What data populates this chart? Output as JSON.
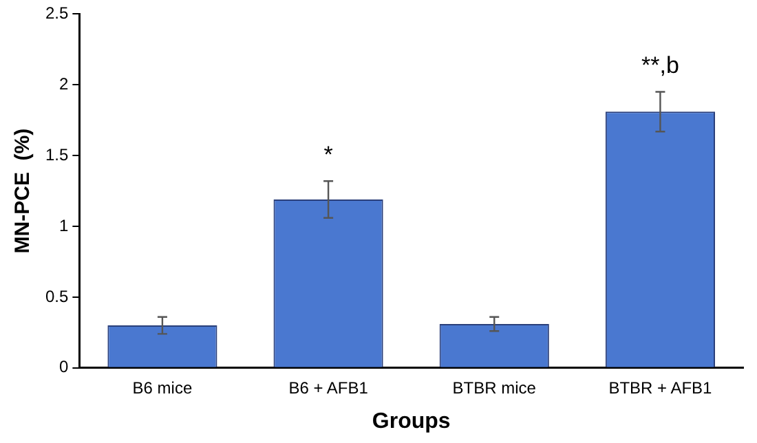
{
  "chart_data": {
    "type": "bar",
    "xlabel": "Groups",
    "ylabel": "MN-PCE  (%)",
    "categories": [
      "B6 mice",
      "B6 + AFB1",
      "BTBR mice",
      "BTBR + AFB1"
    ],
    "values": [
      0.3,
      1.19,
      0.31,
      1.81
    ],
    "errors": [
      0.06,
      0.13,
      0.05,
      0.14
    ],
    "color": "#4a78d0",
    "ylim": [
      0,
      2.5
    ],
    "yticks": [
      0,
      0.5,
      1,
      1.5,
      2,
      2.5
    ],
    "grid": false,
    "legend": false,
    "value_labels": [
      null,
      "*",
      null,
      "**,b"
    ]
  }
}
